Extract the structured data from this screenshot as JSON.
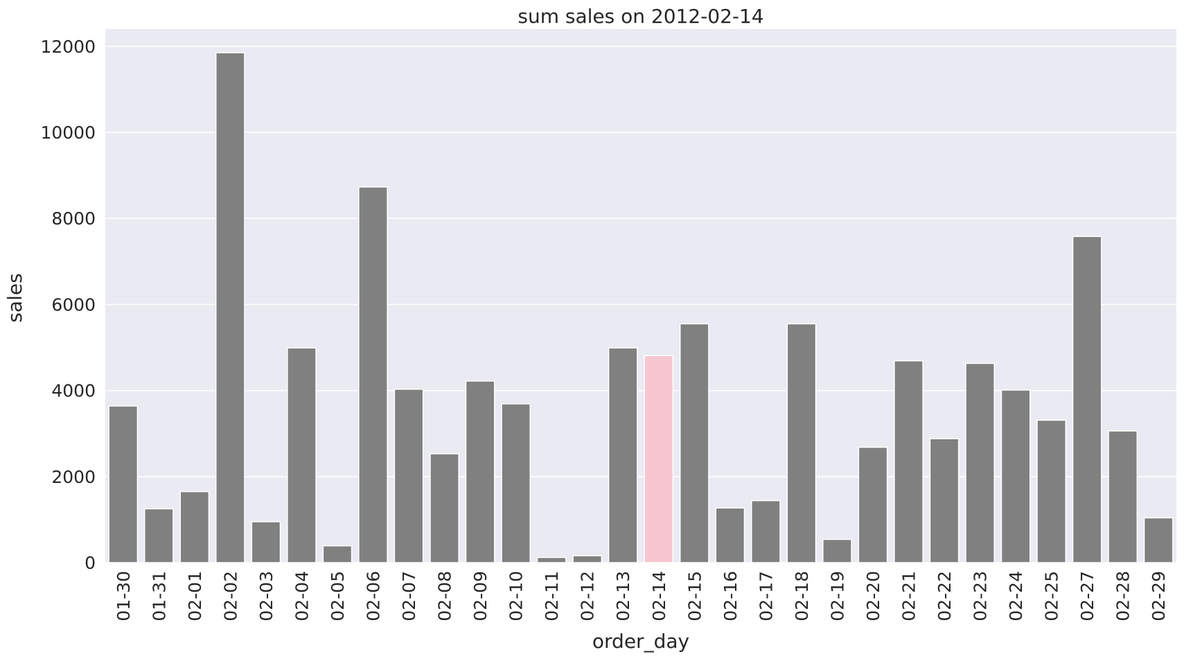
{
  "chart_data": {
    "type": "bar",
    "title": "sum sales on 2012-02-14",
    "xlabel": "order_day",
    "ylabel": "sales",
    "ylim": [
      0,
      12400
    ],
    "yticks": [
      0,
      2000,
      4000,
      6000,
      8000,
      10000,
      12000
    ],
    "grid": true,
    "categories": [
      "01-30",
      "01-31",
      "02-01",
      "02-02",
      "02-03",
      "02-04",
      "02-05",
      "02-06",
      "02-07",
      "02-08",
      "02-09",
      "02-10",
      "02-11",
      "02-12",
      "02-13",
      "02-14",
      "02-15",
      "02-16",
      "02-17",
      "02-18",
      "02-19",
      "02-20",
      "02-21",
      "02-22",
      "02-23",
      "02-24",
      "02-25",
      "02-27",
      "02-28",
      "02-29"
    ],
    "values": [
      3640,
      1250,
      1650,
      11850,
      950,
      4990,
      390,
      8730,
      4030,
      2530,
      4220,
      3690,
      120,
      160,
      4990,
      4810,
      5550,
      1270,
      1440,
      5550,
      540,
      2680,
      4690,
      2880,
      4630,
      4010,
      3310,
      7580,
      3060,
      1040
    ],
    "highlight_category": "02-14",
    "colors": {
      "bar": "#808080",
      "highlight": "#f7c6d0",
      "plot_background": "#eaeaf2",
      "grid": "#ffffff",
      "text": "#262626"
    }
  }
}
